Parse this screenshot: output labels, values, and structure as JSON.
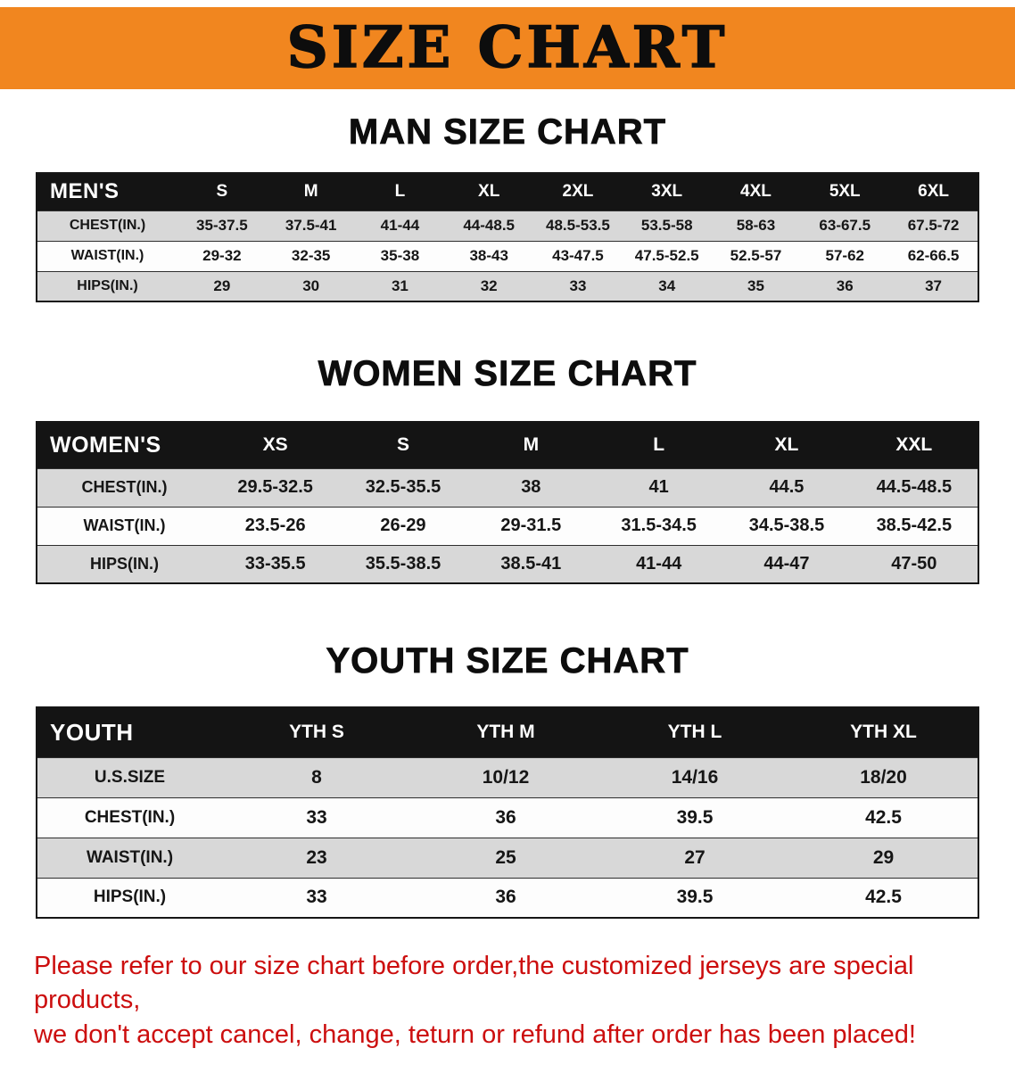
{
  "banner": {
    "title": "SIZE CHART"
  },
  "colors": {
    "banner_bg": "#f1861f",
    "header_black": "#141414",
    "row_gray": "#d8d8d8",
    "row_white": "#fdfdfd",
    "footer_red": "#cc0e0e"
  },
  "sections": [
    {
      "heading": "MAN SIZE CHART",
      "table": {
        "header": [
          "MEN'S",
          "S",
          "M",
          "L",
          "XL",
          "2XL",
          "3XL",
          "4XL",
          "5XL",
          "6XL"
        ],
        "rows": [
          [
            "CHEST(IN.)",
            "35-37.5",
            "37.5-41",
            "41-44",
            "44-48.5",
            "48.5-53.5",
            "53.5-58",
            "58-63",
            "63-67.5",
            "67.5-72"
          ],
          [
            "WAIST(IN.)",
            "29-32",
            "32-35",
            "35-38",
            "38-43",
            "43-47.5",
            "47.5-52.5",
            "52.5-57",
            "57-62",
            "62-66.5"
          ],
          [
            "HIPS(IN.)",
            "29",
            "30",
            "31",
            "32",
            "33",
            "34",
            "35",
            "36",
            "37"
          ]
        ]
      }
    },
    {
      "heading": "WOMEN SIZE CHART",
      "table": {
        "header": [
          "WOMEN'S",
          "XS",
          "S",
          "M",
          "L",
          "XL",
          "XXL"
        ],
        "rows": [
          [
            "CHEST(IN.)",
            "29.5-32.5",
            "32.5-35.5",
            "38",
            "41",
            "44.5",
            "44.5-48.5"
          ],
          [
            "WAIST(IN.)",
            "23.5-26",
            "26-29",
            "29-31.5",
            "31.5-34.5",
            "34.5-38.5",
            "38.5-42.5"
          ],
          [
            "HIPS(IN.)",
            "33-35.5",
            "35.5-38.5",
            "38.5-41",
            "41-44",
            "44-47",
            "47-50"
          ]
        ]
      }
    },
    {
      "heading": "YOUTH SIZE CHART",
      "table": {
        "header": [
          "YOUTH",
          "YTH S",
          "YTH M",
          "YTH L",
          "YTH XL"
        ],
        "rows": [
          [
            "U.S.SIZE",
            "8",
            "10/12",
            "14/16",
            "18/20"
          ],
          [
            "CHEST(IN.)",
            "33",
            "36",
            "39.5",
            "42.5"
          ],
          [
            "WAIST(IN.)",
            "23",
            "25",
            "27",
            "29"
          ],
          [
            "HIPS(IN.)",
            "33",
            "36",
            "39.5",
            "42.5"
          ]
        ]
      }
    }
  ],
  "footer": {
    "lines": [
      "Please refer to our size chart before order,the customized jerseys are special products,",
      "we don't accept cancel, change, teturn or refund after order has been placed!"
    ]
  }
}
